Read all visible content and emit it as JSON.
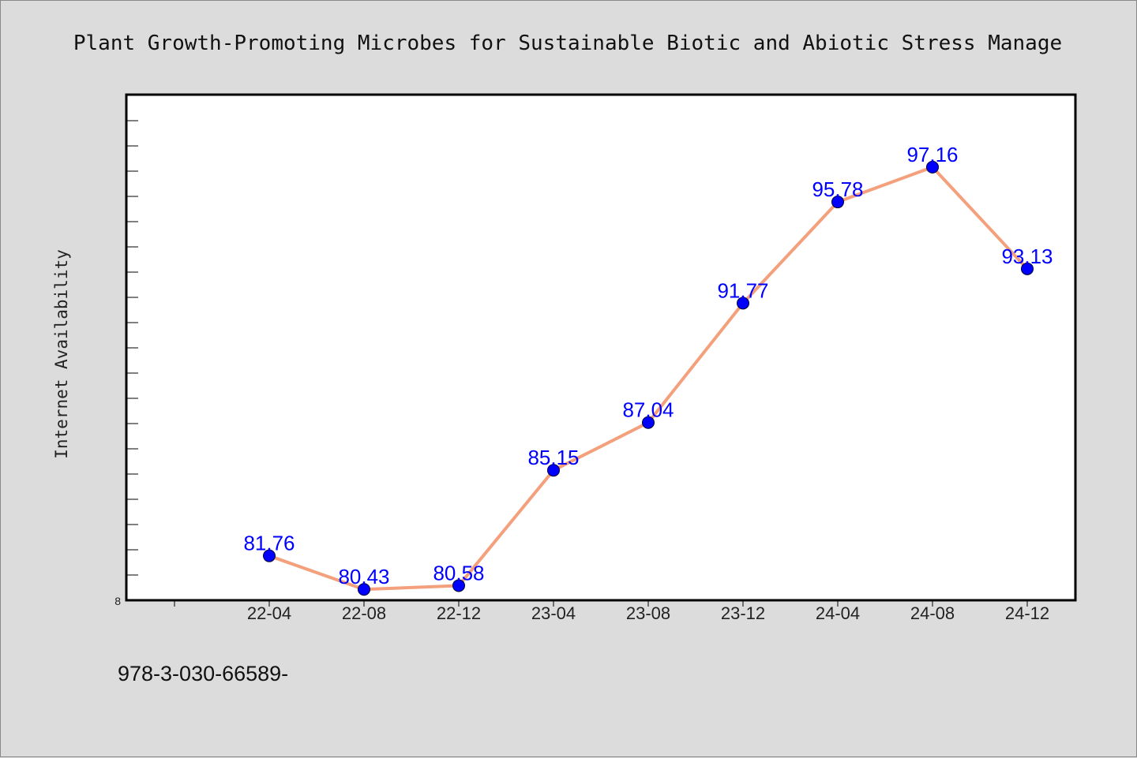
{
  "chart_data": {
    "type": "line",
    "title": "Plant Growth-Promoting Microbes for Sustainable Biotic and Abiotic Stress Manage",
    "xlabel": "",
    "ylabel": "Internet Availability",
    "categories": [
      "22-04",
      "22-08",
      "22-12",
      "23-04",
      "23-08",
      "23-12",
      "24-04",
      "24-08",
      "24-12"
    ],
    "series": [
      {
        "values": [
          81.76,
          80.43,
          80.58,
          85.15,
          87.04,
          91.77,
          95.78,
          97.16,
          93.13
        ]
      }
    ],
    "value_labels": [
      "81.76",
      "80.43",
      "80.58",
      "85.15",
      "87.04",
      "91.77",
      "95.78",
      "97.16",
      "93.13"
    ],
    "ylim": [
      80,
      100
    ],
    "y_min_label": "8",
    "grid": false,
    "line_color": "#f4a07c",
    "marker_color": "#0000ff",
    "label_color": "#0000ff"
  },
  "footer": {
    "text": "978-3-030-66589-"
  }
}
